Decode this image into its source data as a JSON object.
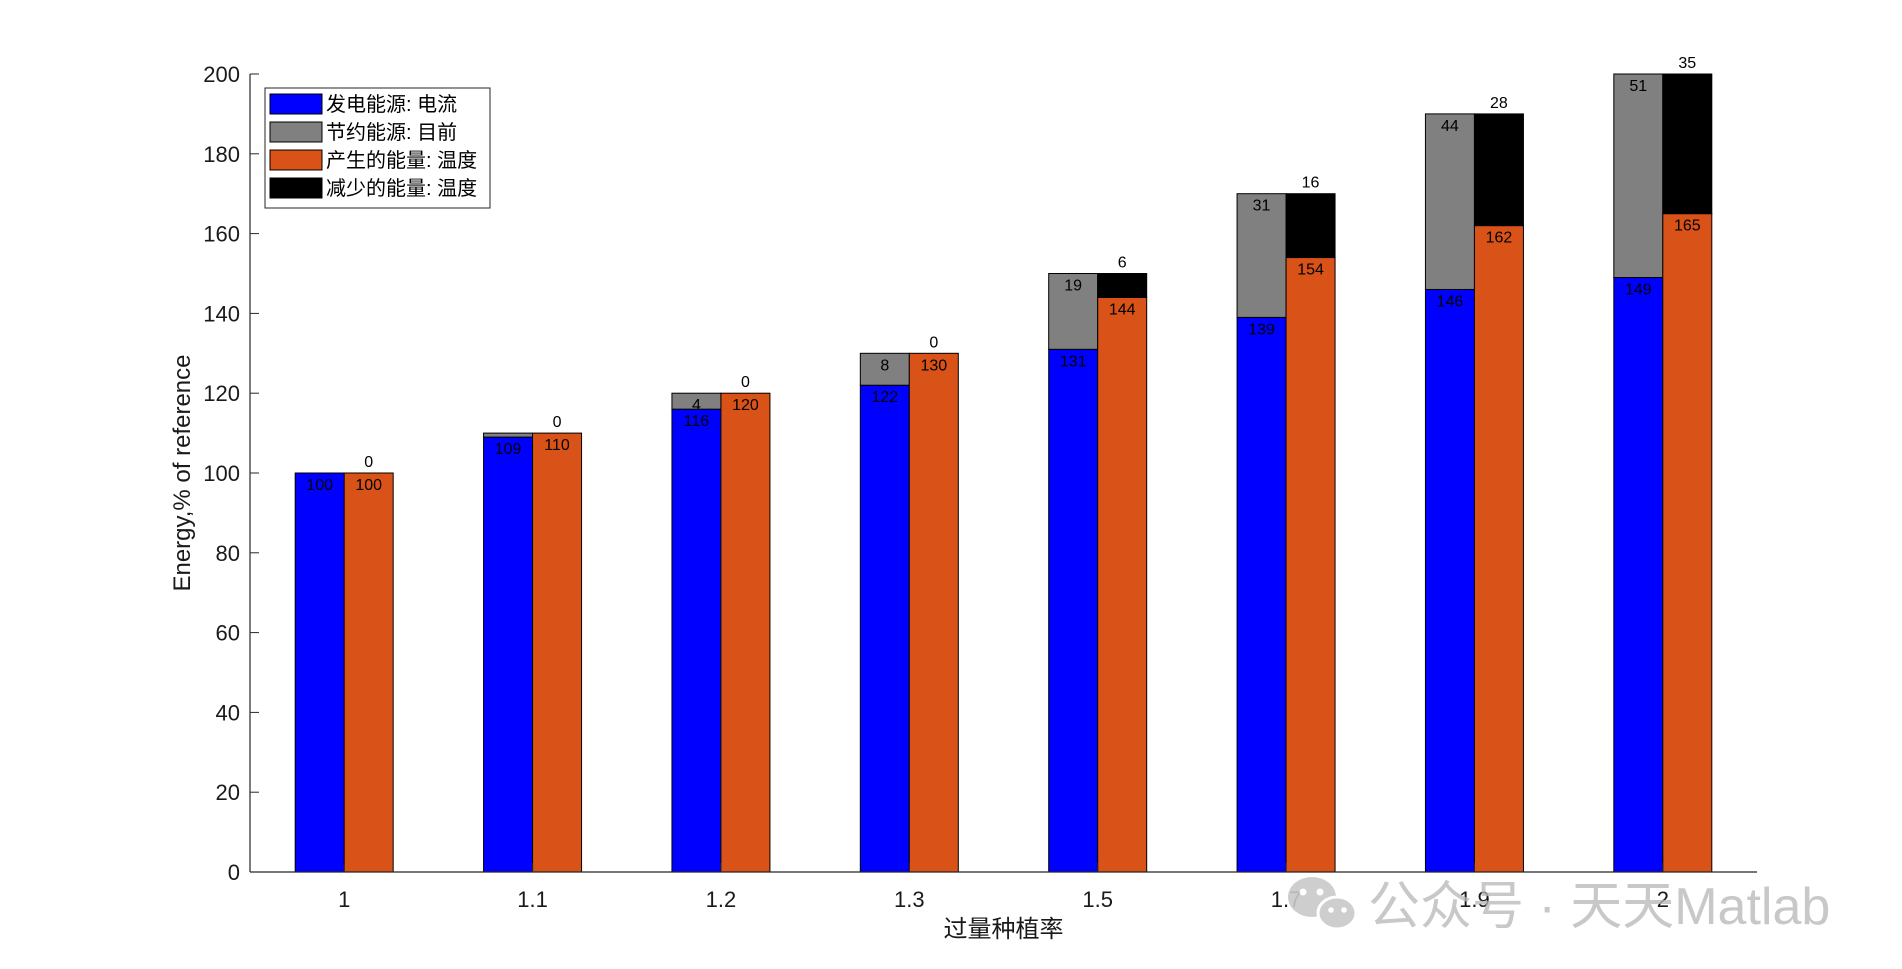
{
  "chart_data": {
    "type": "bar",
    "stacked": true,
    "grouped": true,
    "categories": [
      "1",
      "1.1",
      "1.2",
      "1.3",
      "1.5",
      "1.7",
      "1.9",
      "2"
    ],
    "xlabel": "过量种植率",
    "ylabel": "Energy,% of reference",
    "ylim": [
      0,
      200
    ],
    "yticks": [
      0,
      20,
      40,
      60,
      80,
      100,
      120,
      140,
      160,
      180,
      200
    ],
    "grid": false,
    "legend_position": "top-left",
    "groups": [
      {
        "stack": "left",
        "series": [
          {
            "name": "发电能源: 电流",
            "color": "#0000ff",
            "values": [
              100,
              109,
              116,
              122,
              131,
              139,
              146,
              149
            ],
            "labels": [
              "100",
              "109",
              "116",
              "122",
              "131",
              "139",
              "146",
              "149"
            ]
          },
          {
            "name": "节约能源: 目前",
            "color": "#808080",
            "values": [
              0,
              1,
              4,
              8,
              19,
              31,
              44,
              51
            ],
            "labels": [
              "",
              "",
              "4",
              "8",
              "19",
              "31",
              "44",
              "51"
            ]
          }
        ]
      },
      {
        "stack": "right",
        "series": [
          {
            "name": "产生的能量: 温度",
            "color": "#d95319",
            "values": [
              100,
              110,
              120,
              130,
              144,
              154,
              162,
              165
            ],
            "labels": [
              "100",
              "110",
              "120",
              "130",
              "144",
              "154",
              "162",
              "165"
            ]
          },
          {
            "name": "减少的能量: 温度",
            "color": "#000000",
            "values": [
              0,
              0,
              0,
              0,
              6,
              16,
              28,
              35
            ],
            "labels": [
              "0",
              "0",
              "0",
              "0",
              "6",
              "16",
              "28",
              "35"
            ]
          }
        ]
      }
    ]
  },
  "watermark": {
    "icon": "wechat-icon",
    "text": "公众号 · 天天Matlab"
  }
}
